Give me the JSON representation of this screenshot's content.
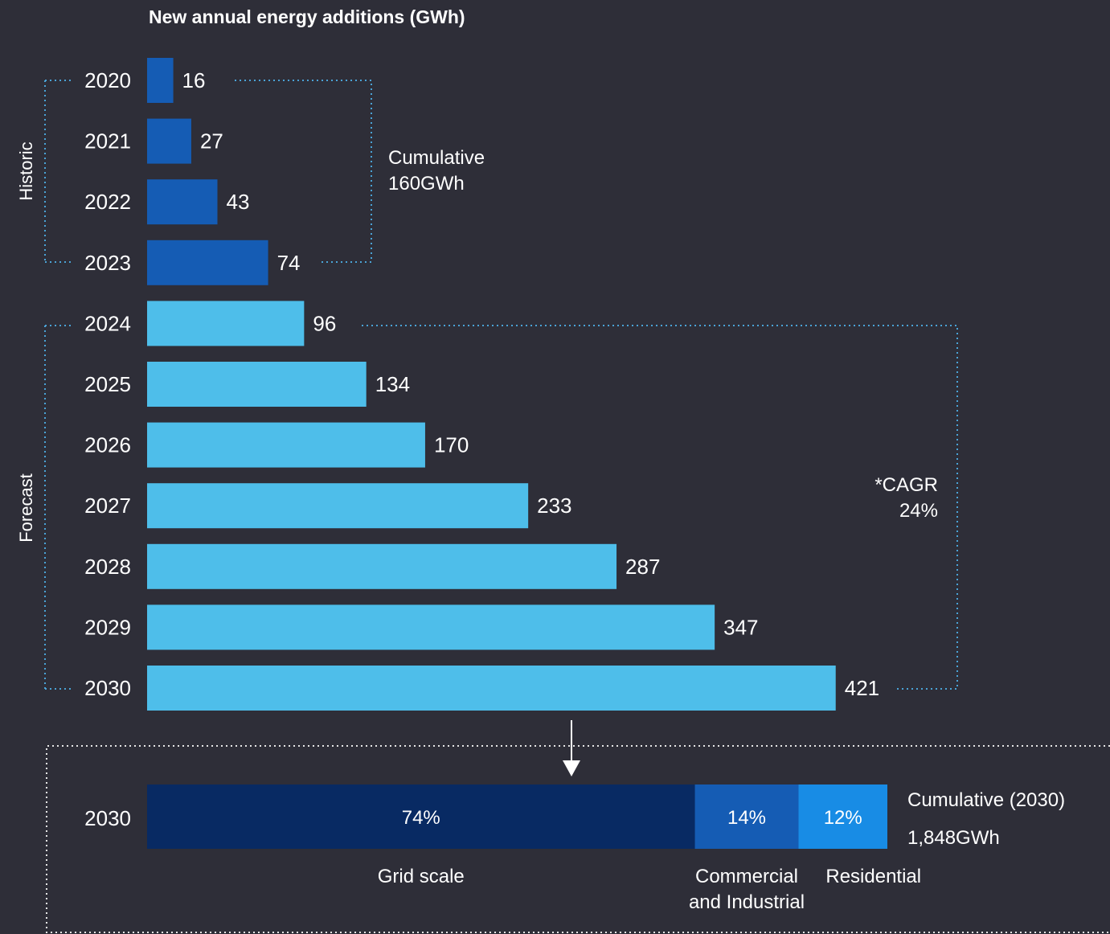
{
  "chart_data": [
    {
      "type": "bar",
      "orientation": "horizontal",
      "title": "New annual energy additions (GWh)",
      "categories": [
        "2020",
        "2021",
        "2022",
        "2023",
        "2024",
        "2025",
        "2026",
        "2027",
        "2028",
        "2029",
        "2030"
      ],
      "values": [
        16,
        27,
        43,
        74,
        96,
        134,
        170,
        233,
        287,
        347,
        421
      ],
      "groups": [
        {
          "label": "Historic",
          "categories": [
            "2020",
            "2021",
            "2022",
            "2023"
          ],
          "color": "#155cb4",
          "note_lines": [
            "Cumulative",
            "160GWh"
          ]
        },
        {
          "label": "Forecast",
          "categories": [
            "2024",
            "2025",
            "2026",
            "2027",
            "2028",
            "2029",
            "2030"
          ],
          "color": "#4ebeea",
          "note_lines": [
            "*CAGR",
            "24%"
          ]
        }
      ],
      "xlabel": "",
      "ylabel": "",
      "grid": false,
      "legend": "none"
    },
    {
      "type": "bar",
      "stacked": true,
      "orientation": "horizontal",
      "category": "2030",
      "series": [
        {
          "name": "Grid scale",
          "value": 74,
          "label": "74%",
          "color": "#082a63"
        },
        {
          "name": "Commercial and Industrial",
          "name_lines": [
            "Commercial",
            "and Industrial"
          ],
          "value": 14,
          "label": "14%",
          "color": "#155cb4"
        },
        {
          "name": "Residential",
          "value": 12,
          "label": "12%",
          "color": "#188ce5"
        }
      ],
      "note_lines": [
        "Cumulative (2030)",
        "1,848GWh"
      ]
    }
  ]
}
